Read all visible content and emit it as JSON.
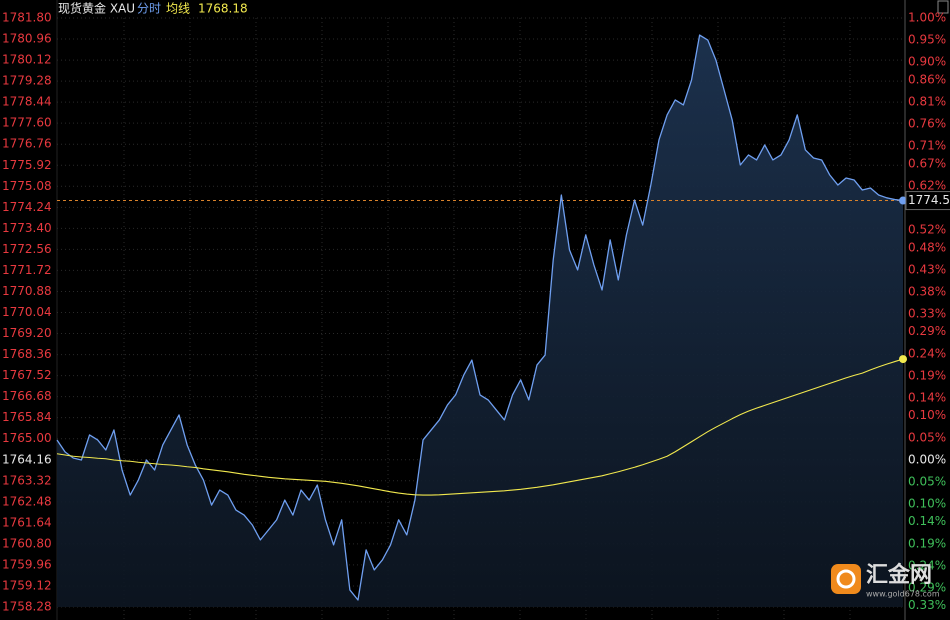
{
  "chart_data": {
    "type": "line",
    "title": "现货黄金 XAU",
    "series": [
      {
        "name": "分时",
        "color": "#6f9ff0",
        "values": [
          1764.95,
          1764.47,
          1764.23,
          1764.15,
          1765.15,
          1764.95,
          1764.55,
          1765.35,
          1763.75,
          1762.75,
          1763.35,
          1764.15,
          1763.75,
          1764.75,
          1765.35,
          1765.95,
          1764.75,
          1763.95,
          1763.35,
          1762.35,
          1762.95,
          1762.75,
          1762.15,
          1761.95,
          1761.56,
          1760.96,
          1761.36,
          1761.76,
          1762.55,
          1761.95,
          1762.95,
          1762.55,
          1763.15,
          1761.76,
          1760.76,
          1761.76,
          1758.96,
          1758.56,
          1760.56,
          1759.76,
          1760.16,
          1760.76,
          1761.76,
          1761.16,
          1762.55,
          1764.95,
          1765.35,
          1765.75,
          1766.35,
          1766.75,
          1767.54,
          1768.14,
          1766.75,
          1766.55,
          1766.15,
          1765.75,
          1766.75,
          1767.35,
          1766.55,
          1767.94,
          1768.34,
          1772.14,
          1774.73,
          1772.54,
          1771.74,
          1773.14,
          1771.94,
          1770.94,
          1772.94,
          1771.34,
          1773.14,
          1774.53,
          1773.53,
          1775.13,
          1776.93,
          1777.93,
          1778.53,
          1778.33,
          1779.32,
          1781.12,
          1780.92,
          1780.12,
          1778.93,
          1777.73,
          1775.93,
          1776.33,
          1776.13,
          1776.73,
          1776.13,
          1776.33,
          1776.93,
          1777.93,
          1776.53,
          1776.21,
          1776.13,
          1775.53,
          1775.13,
          1775.41,
          1775.33,
          1774.93,
          1775.01,
          1774.73,
          1774.62,
          1774.55,
          1774.51
        ]
      },
      {
        "name": "均线",
        "color": "#f2e94e",
        "values": [
          1764.4,
          1764.35,
          1764.3,
          1764.27,
          1764.25,
          1764.22,
          1764.2,
          1764.15,
          1764.12,
          1764.1,
          1764.06,
          1764.03,
          1764.0,
          1763.97,
          1763.95,
          1763.92,
          1763.88,
          1763.85,
          1763.8,
          1763.76,
          1763.72,
          1763.68,
          1763.63,
          1763.58,
          1763.54,
          1763.5,
          1763.46,
          1763.43,
          1763.4,
          1763.38,
          1763.36,
          1763.34,
          1763.32,
          1763.3,
          1763.26,
          1763.22,
          1763.17,
          1763.12,
          1763.06,
          1763.0,
          1762.94,
          1762.88,
          1762.83,
          1762.79,
          1762.76,
          1762.75,
          1762.75,
          1762.76,
          1762.78,
          1762.8,
          1762.82,
          1762.84,
          1762.86,
          1762.88,
          1762.9,
          1762.92,
          1762.95,
          1762.98,
          1763.02,
          1763.06,
          1763.11,
          1763.16,
          1763.22,
          1763.28,
          1763.34,
          1763.4,
          1763.46,
          1763.52,
          1763.6,
          1763.68,
          1763.77,
          1763.86,
          1763.96,
          1764.07,
          1764.18,
          1764.3,
          1764.48,
          1764.68,
          1764.88,
          1765.08,
          1765.28,
          1765.46,
          1765.63,
          1765.8,
          1765.96,
          1766.1,
          1766.22,
          1766.33,
          1766.44,
          1766.55,
          1766.66,
          1766.77,
          1766.88,
          1766.99,
          1767.1,
          1767.21,
          1767.32,
          1767.43,
          1767.53,
          1767.62,
          1767.75,
          1767.87,
          1767.98,
          1768.08,
          1768.18
        ]
      }
    ],
    "ylim": [
      1758.28,
      1781.8
    ],
    "yticks": [
      {
        "value": 1781.8,
        "label": "1781.80"
      },
      {
        "value": 1780.96,
        "label": "1780.96"
      },
      {
        "value": 1780.12,
        "label": "1780.12"
      },
      {
        "value": 1779.28,
        "label": "1779.28"
      },
      {
        "value": 1778.44,
        "label": "1778.44"
      },
      {
        "value": 1777.6,
        "label": "1777.60"
      },
      {
        "value": 1776.76,
        "label": "1776.76"
      },
      {
        "value": 1775.92,
        "label": "1775.92"
      },
      {
        "value": 1775.08,
        "label": "1775.08"
      },
      {
        "value": 1774.24,
        "label": "1774.24"
      },
      {
        "value": 1773.4,
        "label": "1773.40"
      },
      {
        "value": 1772.56,
        "label": "1772.56"
      },
      {
        "value": 1771.72,
        "label": "1771.72"
      },
      {
        "value": 1770.88,
        "label": "1770.88"
      },
      {
        "value": 1770.04,
        "label": "1770.04"
      },
      {
        "value": 1769.2,
        "label": "1769.20"
      },
      {
        "value": 1768.36,
        "label": "1768.36"
      },
      {
        "value": 1767.52,
        "label": "1767.52"
      },
      {
        "value": 1766.68,
        "label": "1766.68"
      },
      {
        "value": 1765.84,
        "label": "1765.84"
      },
      {
        "value": 1765.0,
        "label": "1765.00"
      },
      {
        "value": 1764.16,
        "label": "1764.16"
      },
      {
        "value": 1763.32,
        "label": "1763.32"
      },
      {
        "value": 1762.48,
        "label": "1762.48"
      },
      {
        "value": 1761.64,
        "label": "1761.64"
      },
      {
        "value": 1760.8,
        "label": "1760.80"
      },
      {
        "value": 1759.96,
        "label": "1759.96"
      },
      {
        "value": 1759.12,
        "label": "1759.12"
      },
      {
        "value": 1758.28,
        "label": "1758.28"
      }
    ],
    "y2lim": [
      -0.333,
      1.0
    ],
    "y2ticks": [
      {
        "value": 1.0,
        "label": "1.00%"
      },
      {
        "value": 0.95,
        "label": "0.95%"
      },
      {
        "value": 0.9,
        "label": "0.90%"
      },
      {
        "value": 0.86,
        "label": "0.86%"
      },
      {
        "value": 0.81,
        "label": "0.81%"
      },
      {
        "value": 0.76,
        "label": "0.76%"
      },
      {
        "value": 0.71,
        "label": "0.71%"
      },
      {
        "value": 0.67,
        "label": "0.67%"
      },
      {
        "value": 0.62,
        "label": "0.62%"
      },
      {
        "value": 0.52,
        "label": "0.52%"
      },
      {
        "value": 0.48,
        "label": "0.48%"
      },
      {
        "value": 0.43,
        "label": "0.43%"
      },
      {
        "value": 0.38,
        "label": "0.38%"
      },
      {
        "value": 0.33,
        "label": "0.33%"
      },
      {
        "value": 0.29,
        "label": "0.29%"
      },
      {
        "value": 0.24,
        "label": "0.24%"
      },
      {
        "value": 0.19,
        "label": "0.19%"
      },
      {
        "value": 0.14,
        "label": "0.14%"
      },
      {
        "value": 0.1,
        "label": "0.10%"
      },
      {
        "value": 0.05,
        "label": "0.05%"
      },
      {
        "value": 0.0,
        "label": "0.00%"
      },
      {
        "value": -0.05,
        "label": "0.05%"
      },
      {
        "value": -0.1,
        "label": "0.10%"
      },
      {
        "value": -0.14,
        "label": "0.14%"
      },
      {
        "value": -0.19,
        "label": "0.19%"
      },
      {
        "value": -0.24,
        "label": "0.24%"
      },
      {
        "value": -0.29,
        "label": "0.29%"
      },
      {
        "value": -0.33,
        "label": "0.33%"
      }
    ],
    "grid": true,
    "up_color": "#e8393f",
    "down_color": "#3fbf5a",
    "watermark": {
      "name": "汇金网",
      "url": "www.gold678.com"
    }
  }
}
